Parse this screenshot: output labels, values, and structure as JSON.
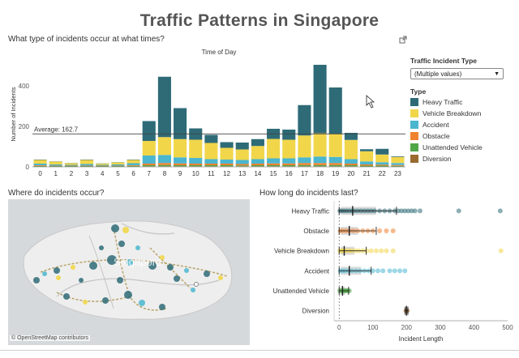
{
  "title": "Traffic Patterns in Singapore",
  "sections": {
    "times": "What type of incidents occur at what times?",
    "where": "Where do incidents occur?",
    "length": "How long do incidents last?"
  },
  "legend": {
    "filter_title": "Traffic Incident Type",
    "filter_value": "(Multiple values)",
    "type_title": "Type",
    "items": [
      {
        "name": "Heavy Traffic",
        "color": "#2e6b77"
      },
      {
        "name": "Vehicle Breakdown",
        "color": "#f1d64a"
      },
      {
        "name": "Accident",
        "color": "#4bb6cf"
      },
      {
        "name": "Obstacle",
        "color": "#f0822f"
      },
      {
        "name": "Unattended Vehicle",
        "color": "#4fa647"
      },
      {
        "name": "Diversion",
        "color": "#9a6a2f"
      }
    ]
  },
  "map": {
    "attribution": "© OpenStreetMap contributors",
    "label": "Singapore"
  },
  "chart_data": [
    {
      "type": "bar",
      "subtype": "stacked",
      "title": "Time of Day",
      "ylabel": "Number of Incidents",
      "ylim": [
        0,
        520
      ],
      "yticks": [
        0,
        200,
        400
      ],
      "reference_line": {
        "value": 162.7,
        "label": "Average: 162.7"
      },
      "categories": [
        "0",
        "1",
        "2",
        "3",
        "4",
        "5",
        "6",
        "7",
        "8",
        "9",
        "10",
        "11",
        "12",
        "13",
        "14",
        "15",
        "16",
        "17",
        "18",
        "19",
        "20",
        "21",
        "22",
        "23"
      ],
      "series": [
        {
          "name": "Diversion",
          "values": [
            2,
            2,
            2,
            2,
            2,
            2,
            2,
            3,
            3,
            3,
            3,
            3,
            3,
            3,
            3,
            3,
            3,
            3,
            3,
            3,
            3,
            2,
            2,
            2
          ]
        },
        {
          "name": "Unattended Vehicle",
          "values": [
            3,
            2,
            2,
            2,
            2,
            2,
            3,
            5,
            6,
            5,
            5,
            5,
            5,
            4,
            5,
            5,
            5,
            6,
            6,
            6,
            5,
            4,
            4,
            3
          ]
        },
        {
          "name": "Obstacle",
          "values": [
            3,
            2,
            2,
            2,
            2,
            2,
            3,
            8,
            10,
            9,
            8,
            8,
            8,
            7,
            8,
            9,
            9,
            10,
            10,
            10,
            8,
            6,
            5,
            4
          ]
        },
        {
          "name": "Accident",
          "values": [
            8,
            6,
            4,
            8,
            4,
            6,
            10,
            40,
            40,
            30,
            28,
            22,
            20,
            20,
            22,
            25,
            25,
            28,
            32,
            30,
            22,
            15,
            12,
            10
          ]
        },
        {
          "name": "Vehicle Breakdown",
          "values": [
            18,
            14,
            8,
            20,
            6,
            10,
            16,
            72,
            88,
            90,
            90,
            80,
            58,
            52,
            65,
            96,
            92,
            108,
            115,
            115,
            95,
            50,
            38,
            30
          ]
        },
        {
          "name": "Heavy Traffic",
          "values": [
            2,
            1,
            1,
            2,
            1,
            1,
            2,
            98,
            298,
            153,
            56,
            40,
            28,
            34,
            34,
            50,
            50,
            150,
            338,
            228,
            35,
            10,
            28,
            3
          ]
        }
      ]
    },
    {
      "type": "scatter",
      "subtype": "box-and-whisker",
      "xlabel": "Incident Length",
      "xlim": [
        -15,
        500
      ],
      "xticks": [
        0,
        100,
        200,
        300,
        400,
        500
      ],
      "categories": [
        "Heavy Traffic",
        "Obstacle",
        "Vehicle Breakdown",
        "Accident",
        "Unattended Vehicle",
        "Diversion"
      ],
      "series": [
        {
          "name": "Heavy Traffic",
          "q1": 5,
          "median": 40,
          "q3": 110,
          "whisker_low": 0,
          "whisker_high": 170,
          "points": [
            2,
            8,
            15,
            22,
            30,
            38,
            45,
            55,
            65,
            75,
            85,
            95,
            105,
            120,
            135,
            150,
            165,
            175,
            185,
            195,
            205,
            215,
            225,
            240,
            355,
            478
          ]
        },
        {
          "name": "Obstacle",
          "q1": 5,
          "median": 30,
          "q3": 55,
          "whisker_low": 0,
          "whisker_high": 110,
          "points": [
            3,
            10,
            20,
            30,
            42,
            55,
            70,
            85,
            100,
            120,
            140,
            160
          ]
        },
        {
          "name": "Vehicle Breakdown",
          "q1": 5,
          "median": 15,
          "q3": 45,
          "whisker_low": 0,
          "whisker_high": 80,
          "points": [
            2,
            6,
            10,
            15,
            22,
            30,
            38,
            48,
            58,
            70,
            82,
            95,
            110,
            125,
            140,
            160,
            480
          ]
        },
        {
          "name": "Accident",
          "q1": 5,
          "median": 30,
          "q3": 65,
          "whisker_low": 0,
          "whisker_high": 95,
          "points": [
            3,
            10,
            18,
            28,
            38,
            50,
            62,
            75,
            88,
            100,
            115,
            130,
            150,
            165,
            180,
            195
          ]
        },
        {
          "name": "Unattended Vehicle",
          "q1": 3,
          "median": 10,
          "q3": 18,
          "whisker_low": 0,
          "whisker_high": 28,
          "points": [
            2,
            6,
            10,
            14,
            18,
            22,
            26,
            30
          ]
        },
        {
          "name": "Diversion",
          "q1": 198,
          "median": 200,
          "q3": 202,
          "whisker_low": 196,
          "whisker_high": 204,
          "points": [
            198,
            200,
            202
          ]
        }
      ]
    }
  ]
}
